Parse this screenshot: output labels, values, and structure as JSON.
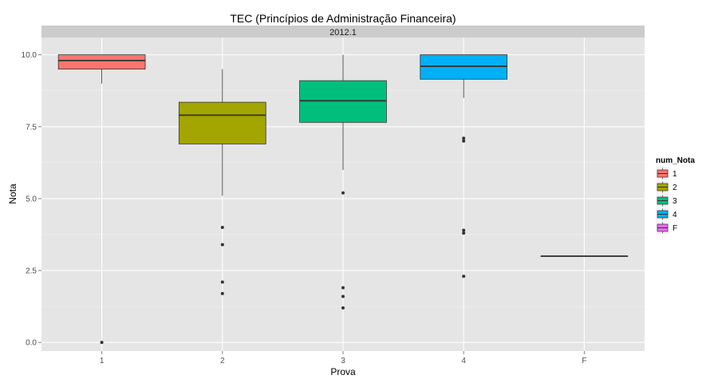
{
  "chart_data": {
    "type": "boxplot",
    "title": "TEC (Princípios de Administração Financeira)",
    "facet_label": "2012.1",
    "xlabel": "Prova",
    "ylabel": "Nota",
    "ylim": [
      -0.3,
      10.6
    ],
    "yticks": [
      0.0,
      2.5,
      5.0,
      7.5,
      10.0
    ],
    "ytick_labels": [
      "0.0",
      "2.5",
      "5.0",
      "7.5",
      "10.0"
    ],
    "categories": [
      "1",
      "2",
      "3",
      "4",
      "F"
    ],
    "grid": true,
    "legend_position": "right",
    "legend": {
      "title": "num_Nota",
      "items": [
        {
          "label": "1",
          "color": "#F8766D"
        },
        {
          "label": "2",
          "color": "#A3A500"
        },
        {
          "label": "3",
          "color": "#00BF7D"
        },
        {
          "label": "4",
          "color": "#00B0F6"
        },
        {
          "label": "F",
          "color": "#E76BF3"
        }
      ]
    },
    "boxes": [
      {
        "category": "1",
        "fill": "#F8766D",
        "lower_whisker": 9.0,
        "q1": 9.5,
        "median": 9.8,
        "q3": 10.0,
        "upper_whisker": 10.0,
        "outliers": [
          0.0
        ]
      },
      {
        "category": "2",
        "fill": "#A3A500",
        "lower_whisker": 5.1,
        "q1": 6.9,
        "median": 7.9,
        "q3": 8.35,
        "upper_whisker": 9.5,
        "outliers": [
          4.0,
          3.4,
          2.1,
          1.7
        ]
      },
      {
        "category": "3",
        "fill": "#00BF7D",
        "lower_whisker": 6.0,
        "q1": 7.65,
        "median": 8.4,
        "q3": 9.1,
        "upper_whisker": 10.0,
        "outliers": [
          5.2,
          1.9,
          1.6,
          1.2
        ]
      },
      {
        "category": "4",
        "fill": "#00B0F6",
        "lower_whisker": 8.5,
        "q1": 9.15,
        "median": 9.6,
        "q3": 10.0,
        "upper_whisker": 10.0,
        "outliers": [
          7.1,
          7.0,
          3.9,
          3.8,
          2.3
        ]
      },
      {
        "category": "F",
        "fill": "#E76BF3",
        "lower_whisker": 3.0,
        "q1": 3.0,
        "median": 3.0,
        "q3": 3.0,
        "upper_whisker": 3.0,
        "outliers": []
      }
    ]
  }
}
